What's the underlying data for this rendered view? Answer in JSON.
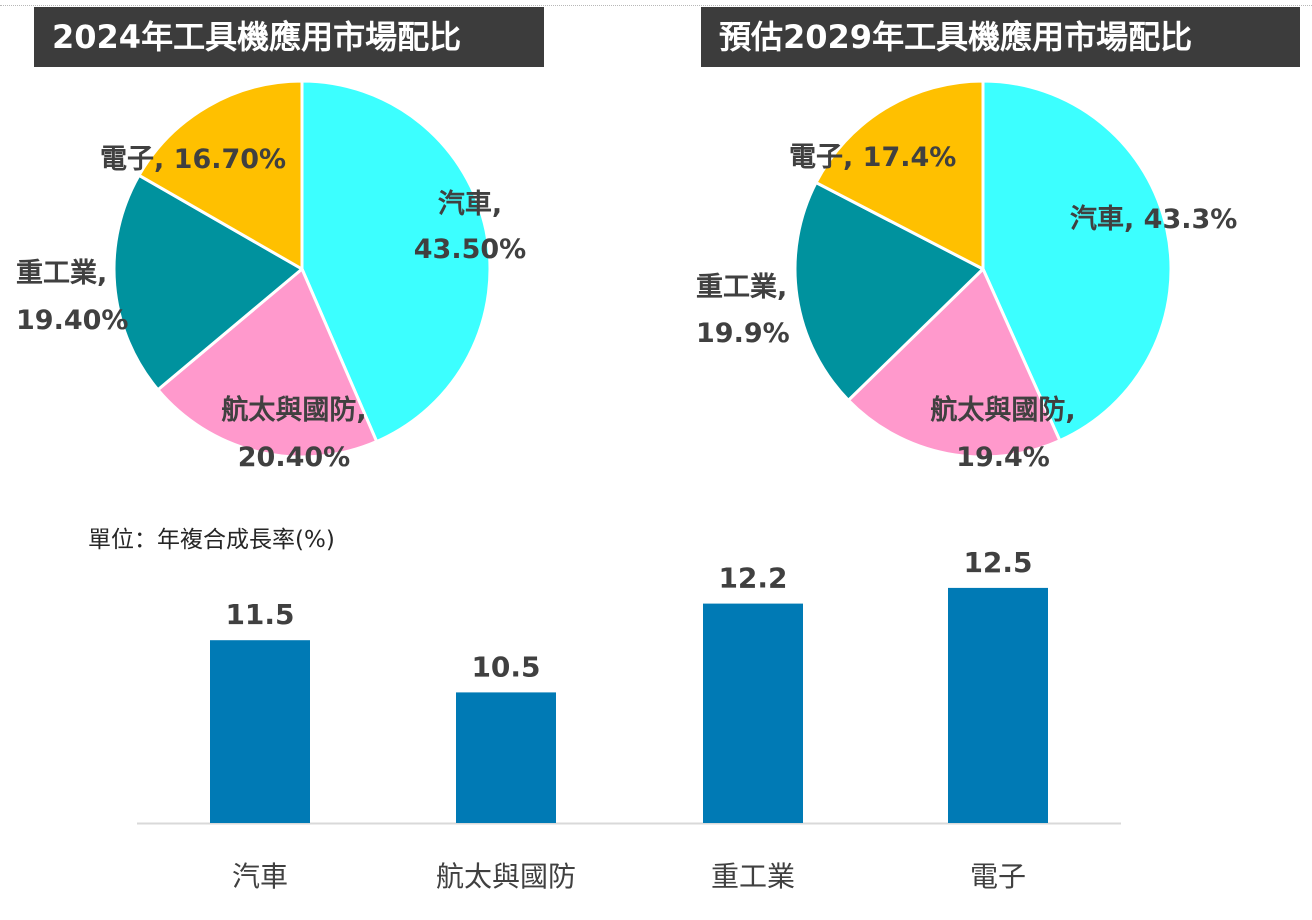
{
  "chart_data": [
    {
      "type": "pie",
      "title": "2024年工具機應用市場配比",
      "slices": [
        {
          "category": "汽車",
          "value": 43.5,
          "label": "43.50%",
          "color": "#3CFFFF"
        },
        {
          "category": "航太與國防",
          "value": 20.4,
          "label": "20.40%",
          "color": "#FF99CC"
        },
        {
          "category": "重工業",
          "value": 19.4,
          "label": "19.40%",
          "color": "#00929E"
        },
        {
          "category": "電子",
          "value": 16.7,
          "label": "16.70%",
          "color": "#FFC000"
        }
      ]
    },
    {
      "type": "pie",
      "title": "預估2029年工具機應用市場配比",
      "slices": [
        {
          "category": "汽車",
          "value": 43.3,
          "label": "43.3%",
          "color": "#3CFFFF"
        },
        {
          "category": "航太與國防",
          "value": 19.4,
          "label": "19.4%",
          "color": "#FF99CC"
        },
        {
          "category": "重工業",
          "value": 19.9,
          "label": "19.9%",
          "color": "#00929E"
        },
        {
          "category": "電子",
          "value": 17.4,
          "label": "17.4%",
          "color": "#FFC000"
        }
      ]
    },
    {
      "type": "bar",
      "unit_label": "單位：年複合成長率(%)",
      "categories": [
        "汽車",
        "航太與國防",
        "重工業",
        "電子"
      ],
      "values": [
        11.5,
        10.5,
        12.2,
        12.5
      ],
      "value_labels": [
        "11.5",
        "10.5",
        "12.2",
        "12.5"
      ],
      "ylim": [
        8,
        13.8
      ],
      "bar_color": "#007AB5",
      "axis_color": "#D9D9D9"
    }
  ]
}
